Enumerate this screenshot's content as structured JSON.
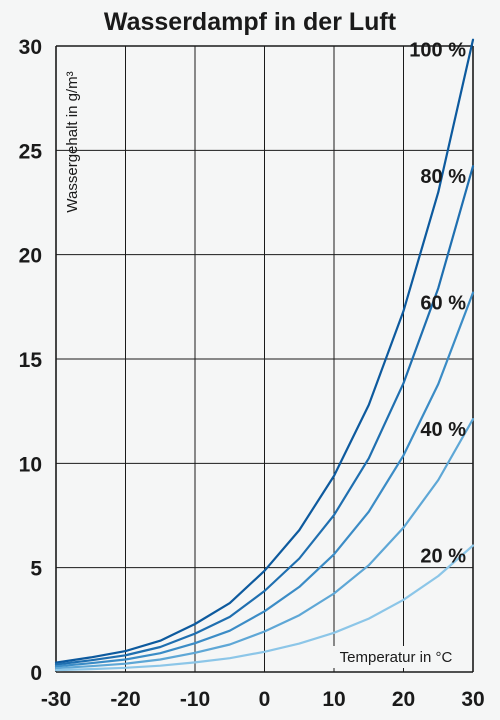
{
  "chart_data": {
    "type": "line",
    "title": "Wasserdampf in der Luft",
    "xlabel": "Temperatur in °C",
    "ylabel": "Wassergehalt in g/m³",
    "xlim": [
      -30,
      30
    ],
    "ylim": [
      0,
      30
    ],
    "x_ticks": [
      -30,
      -20,
      -10,
      0,
      10,
      20,
      30
    ],
    "y_ticks": [
      0,
      5,
      10,
      15,
      20,
      25,
      30
    ],
    "grid": true,
    "x": [
      -30,
      -25,
      -20,
      -15,
      -10,
      -5,
      0,
      5,
      10,
      15,
      20,
      25,
      30
    ],
    "series": [
      {
        "name": "100 %",
        "color": "#0d5a9e",
        "values": [
          0.45,
          0.7,
          1.0,
          1.5,
          2.3,
          3.3,
          4.85,
          6.8,
          9.4,
          12.8,
          17.3,
          23.0,
          30.3
        ]
      },
      {
        "name": "80 %",
        "color": "#1f6fb0",
        "values": [
          0.36,
          0.56,
          0.8,
          1.2,
          1.84,
          2.64,
          3.88,
          5.44,
          7.52,
          10.24,
          13.84,
          18.4,
          24.24
        ]
      },
      {
        "name": "60 %",
        "color": "#3b8cc6",
        "values": [
          0.27,
          0.42,
          0.6,
          0.9,
          1.38,
          1.98,
          2.91,
          4.08,
          5.64,
          7.68,
          10.38,
          13.8,
          18.18
        ]
      },
      {
        "name": "40 %",
        "color": "#5ea7d6",
        "values": [
          0.18,
          0.28,
          0.4,
          0.6,
          0.92,
          1.32,
          1.94,
          2.72,
          3.76,
          5.12,
          6.92,
          9.2,
          12.12
        ]
      },
      {
        "name": "20 %",
        "color": "#8cc6e8",
        "values": [
          0.09,
          0.14,
          0.2,
          0.3,
          0.46,
          0.66,
          0.97,
          1.36,
          1.88,
          2.56,
          3.46,
          4.6,
          6.06
        ]
      }
    ]
  }
}
